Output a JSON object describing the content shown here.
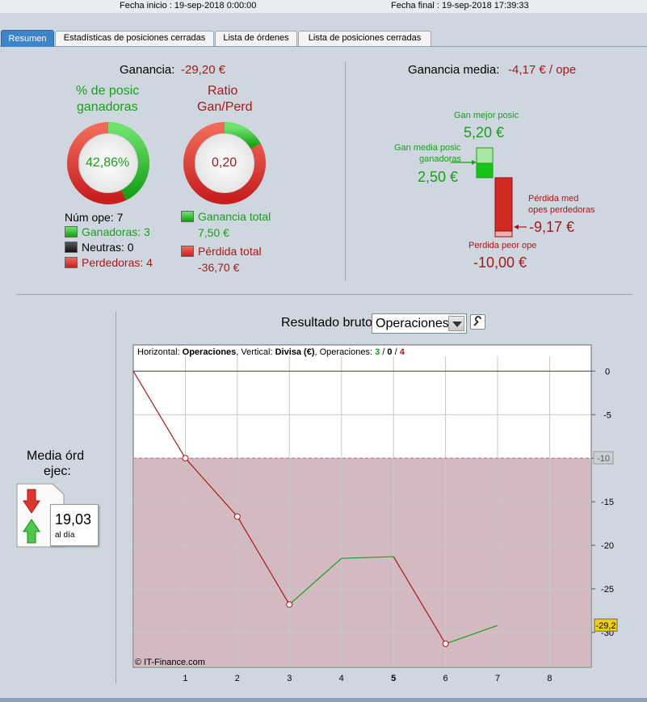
{
  "header": {
    "start_label": "Fecha inicio : 19-sep-2018 0:00:00",
    "end_label": "Fecha final : 19-sep-2018 17:39:33"
  },
  "tabs": [
    {
      "label": "Resumen",
      "active": true
    },
    {
      "label": "Estadísticas de posiciones cerradas",
      "active": false
    },
    {
      "label": "Lista de órdenes",
      "active": false
    },
    {
      "label": "Lista de posiciones cerradas",
      "active": false
    }
  ],
  "summary": {
    "gain_label": "Ganancia:",
    "gain_value": "-29,20 €",
    "win_title_1": "% de posic",
    "win_title_2": "ganadoras",
    "win_value": "42,86%",
    "win_fraction": 0.4286,
    "ratio_title_1": "Ratio",
    "ratio_title_2": "Gan/Perd",
    "ratio_value": "0,20",
    "ratio_fraction": 0.17,
    "num_ope": "Núm ope: 7",
    "winners": "Ganadoras: 3",
    "neutral": "Neutras: 0",
    "losers": "Perdedoras: 4",
    "total_gain_label": "Ganancia total",
    "total_gain_value": "7,50 €",
    "total_loss_label": "Pérdida total",
    "total_loss_value": "-36,70 €"
  },
  "average": {
    "label": "Ganancia media:",
    "value": "-4,17 € / ope",
    "best_label": "Gan mejor posic",
    "best_value": "5,20 €",
    "avg_win_label_1": "Gan media posic",
    "avg_win_label_2": "ganadoras",
    "avg_win_value": "2,50 €",
    "avg_loss_label_1": "Pérdida med",
    "avg_loss_label_2": "opes perdedoras",
    "avg_loss_value": "-9,17 €",
    "worst_label": "Perdida peor ope",
    "worst_value": "-10,00 €"
  },
  "orders": {
    "label_1": "Media órd",
    "label_2": "ejec:",
    "value": "19,03",
    "unit": "al día"
  },
  "chart_header": {
    "title": "Resultado bruto",
    "select_value": "Operaciones"
  },
  "chart_info": {
    "prefix": "Horizontal: ",
    "h_value": "Operaciones",
    "mid": ", Vertical: ",
    "v_value": "Divisa (€)",
    "ops_label": ", Operaciones: ",
    "ops_win": "3",
    "ops_sep1": " / ",
    "ops_neutral": "0",
    "ops_sep2": " / ",
    "ops_loss": "4"
  },
  "watermark": "© IT-Finance.com",
  "colors": {
    "gain": "#18a018",
    "loss": "#a81818",
    "zero_line": "#2a3aa8",
    "drawdown_fill": "#d2bac0"
  },
  "chart_data": {
    "type": "line",
    "x": [
      0,
      1,
      2,
      3,
      4,
      5,
      6,
      7
    ],
    "y": [
      0,
      -10,
      -16.7,
      -26.8,
      -21.5,
      -21.3,
      -31.3,
      -29.2
    ],
    "xlim": [
      0,
      8.8
    ],
    "ylim": [
      -34,
      3
    ],
    "x_ticks": [
      "1",
      "2",
      "3",
      "4",
      "5",
      "6",
      "7",
      "8"
    ],
    "y_ticks": [
      "0",
      "-5",
      "-10",
      "-15",
      "-20",
      "-25",
      "-30"
    ],
    "y_tick_values": [
      0,
      -5,
      -10,
      -15,
      -20,
      -25,
      -30
    ],
    "drawdown_level": -10,
    "drawdown_label": "-10",
    "last_value_label": "-29,2",
    "grid": true
  }
}
